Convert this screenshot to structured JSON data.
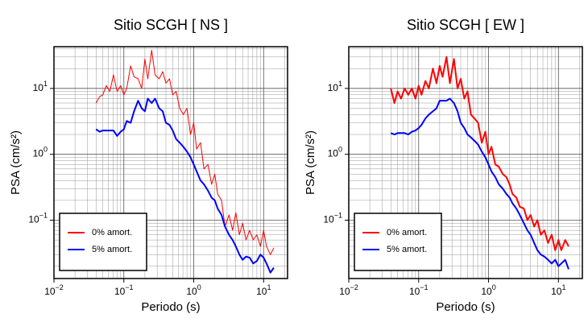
{
  "chart_data": [
    {
      "type": "line",
      "title": "Sitio SCGH [ NS ]",
      "xlabel": "Periodo (s)",
      "ylabel": "PSA (cm/s²)",
      "xscale": "log",
      "yscale": "log",
      "grid": true,
      "legend": "lower left",
      "xlim": [
        0.01,
        22
      ],
      "ylim": [
        0.013,
        43
      ],
      "xticks": [
        {
          "value": 0.01,
          "label": "10^−2"
        },
        {
          "value": 0.1,
          "label": "10^−1"
        },
        {
          "value": 1,
          "label": "10^0"
        },
        {
          "value": 10,
          "label": "10^1"
        }
      ],
      "yticks": [
        {
          "value": 0.1,
          "label": "10^−1"
        },
        {
          "value": 1,
          "label": "10^0"
        },
        {
          "value": 10,
          "label": "10^1"
        }
      ],
      "x": [
        0.04,
        0.045,
        0.05,
        0.056,
        0.063,
        0.071,
        0.08,
        0.09,
        0.1,
        0.11,
        0.125,
        0.14,
        0.16,
        0.18,
        0.2,
        0.22,
        0.25,
        0.28,
        0.32,
        0.36,
        0.4,
        0.45,
        0.5,
        0.56,
        0.63,
        0.71,
        0.8,
        0.9,
        1.0,
        1.1,
        1.25,
        1.4,
        1.6,
        1.8,
        2.0,
        2.2,
        2.5,
        2.8,
        3.2,
        3.6,
        4.0,
        4.5,
        5.0,
        5.6,
        6.3,
        7.1,
        8.0,
        9.0,
        10,
        11,
        12.5,
        14
      ],
      "series": [
        {
          "name": "0% amort.",
          "color": "#ff0000",
          "width": 1,
          "values": [
            6,
            7.5,
            8,
            11,
            9,
            16,
            9,
            11,
            8,
            10,
            22,
            15,
            14,
            10,
            28,
            14,
            38,
            16,
            14,
            18,
            12,
            14,
            8,
            9,
            5,
            4,
            5,
            2,
            3,
            1.2,
            1.5,
            0.6,
            0.7,
            0.35,
            0.5,
            0.25,
            0.2,
            0.08,
            0.12,
            0.07,
            0.13,
            0.06,
            0.09,
            0.05,
            0.07,
            0.05,
            0.06,
            0.04,
            0.07,
            0.04,
            0.03,
            0.038
          ]
        },
        {
          "name": "5% amort.",
          "color": "#0000ff",
          "width": 2,
          "values": [
            2.4,
            2.2,
            2.3,
            2.3,
            2.3,
            2.3,
            1.9,
            2.2,
            2.4,
            3.2,
            3.0,
            4.5,
            6.5,
            5.0,
            4.5,
            7.0,
            6.0,
            7.0,
            5.0,
            4.5,
            3.0,
            2.8,
            2.3,
            1.7,
            1.5,
            1.3,
            1.1,
            0.9,
            0.7,
            0.55,
            0.4,
            0.35,
            0.28,
            0.22,
            0.2,
            0.15,
            0.12,
            0.08,
            0.06,
            0.05,
            0.04,
            0.03,
            0.025,
            0.028,
            0.027,
            0.022,
            0.024,
            0.03,
            0.027,
            0.022,
            0.016,
            0.019
          ]
        }
      ]
    },
    {
      "type": "line",
      "title": "Sitio SCGH [ EW ]",
      "xlabel": "Periodo (s)",
      "ylabel": "PSA (cm/s²)",
      "xscale": "log",
      "yscale": "log",
      "grid": true,
      "legend": "lower left",
      "xlim": [
        0.01,
        22
      ],
      "ylim": [
        0.013,
        43
      ],
      "xticks": [
        {
          "value": 0.01,
          "label": "10^−2"
        },
        {
          "value": 0.1,
          "label": "10^−1"
        },
        {
          "value": 1,
          "label": "10^0"
        },
        {
          "value": 10,
          "label": "10^1"
        }
      ],
      "yticks": [
        {
          "value": 0.1,
          "label": "10^−1"
        },
        {
          "value": 1,
          "label": "10^0"
        },
        {
          "value": 10,
          "label": "10^1"
        }
      ],
      "x": [
        0.04,
        0.045,
        0.05,
        0.056,
        0.063,
        0.071,
        0.08,
        0.09,
        0.1,
        0.11,
        0.125,
        0.14,
        0.16,
        0.18,
        0.2,
        0.22,
        0.25,
        0.28,
        0.32,
        0.36,
        0.4,
        0.45,
        0.5,
        0.56,
        0.63,
        0.71,
        0.8,
        0.9,
        1.0,
        1.1,
        1.25,
        1.4,
        1.6,
        1.8,
        2.0,
        2.2,
        2.5,
        2.8,
        3.2,
        3.6,
        4.0,
        4.5,
        5.0,
        5.6,
        6.3,
        7.1,
        8.0,
        9.0,
        10,
        11,
        12.5,
        14
      ],
      "series": [
        {
          "name": "0% amort.",
          "color": "#ff0000",
          "width": 2,
          "values": [
            10,
            6,
            9,
            7,
            10,
            8,
            10,
            7,
            11,
            8,
            13,
            10,
            20,
            12,
            22,
            15,
            30,
            12,
            28,
            10,
            14,
            7,
            9,
            4,
            3.5,
            3,
            1.5,
            2.2,
            1.0,
            1.3,
            0.7,
            0.65,
            0.5,
            0.45,
            0.35,
            0.25,
            0.22,
            0.16,
            0.15,
            0.1,
            0.12,
            0.08,
            0.1,
            0.06,
            0.07,
            0.045,
            0.06,
            0.035,
            0.05,
            0.035,
            0.05,
            0.04
          ]
        },
        {
          "name": "5% amort.",
          "color": "#0000ff",
          "width": 2,
          "values": [
            2.1,
            2.0,
            2.1,
            2.1,
            2.1,
            2.0,
            2.2,
            2.3,
            2.5,
            2.8,
            3.5,
            4.0,
            4.5,
            5.0,
            6.5,
            6.5,
            6.5,
            7.0,
            6.0,
            4.5,
            3.0,
            2.5,
            2.0,
            1.8,
            1.6,
            1.4,
            1.1,
            0.9,
            0.7,
            0.55,
            0.45,
            0.35,
            0.3,
            0.25,
            0.22,
            0.18,
            0.15,
            0.12,
            0.09,
            0.07,
            0.06,
            0.045,
            0.035,
            0.03,
            0.028,
            0.025,
            0.022,
            0.025,
            0.02,
            0.022,
            0.025,
            0.018
          ]
        }
      ]
    }
  ]
}
